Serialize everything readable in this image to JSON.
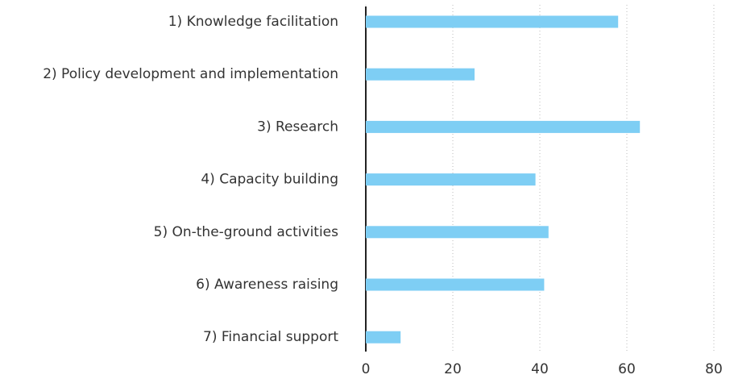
{
  "chart_data": {
    "type": "bar",
    "orientation": "horizontal",
    "categories": [
      "1) Knowledge facilitation",
      "2) Policy development and implementation",
      "3) Research",
      "4) Capacity building",
      "5) On-the-ground activities",
      "6) Awareness raising",
      "7) Financial support"
    ],
    "values": [
      58,
      25,
      63,
      39,
      42,
      41,
      8
    ],
    "color": "#7ecef4",
    "xlim": [
      0,
      80
    ],
    "xticks": [
      0,
      20,
      40,
      60,
      80
    ],
    "grid": true
  }
}
